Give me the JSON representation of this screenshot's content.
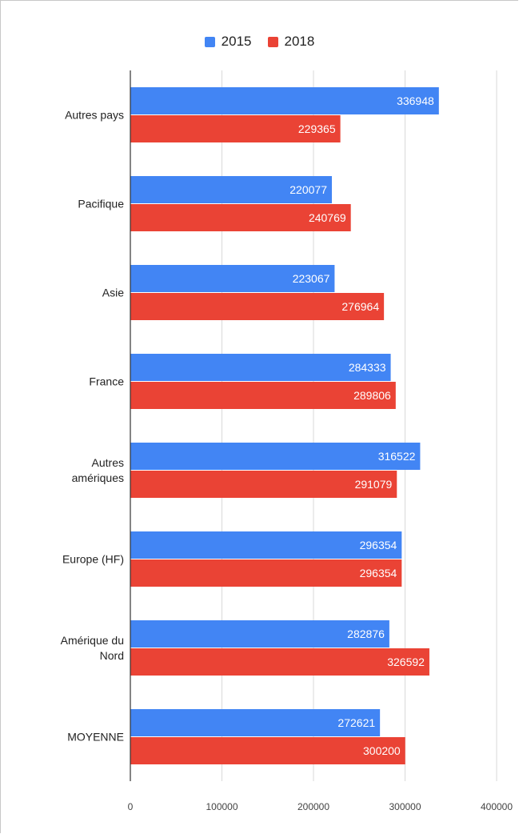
{
  "chart_data": {
    "type": "bar",
    "orientation": "horizontal",
    "categories": [
      "Autres pays",
      "Pacifique",
      "Asie",
      "France",
      "Autres amériques",
      "Europe (HF)",
      "Amérique du Nord",
      "MOYENNE"
    ],
    "category_lines": [
      [
        "Autres pays"
      ],
      [
        "Pacifique"
      ],
      [
        "Asie"
      ],
      [
        "France"
      ],
      [
        "Autres",
        "amériques"
      ],
      [
        "Europe (HF)"
      ],
      [
        "Amérique du",
        "Nord"
      ],
      [
        "MOYENNE"
      ]
    ],
    "series": [
      {
        "name": "2015",
        "color": "#4285f4",
        "values": [
          336948,
          220077,
          223067,
          284333,
          316522,
          296354,
          282876,
          272621
        ]
      },
      {
        "name": "2018",
        "color": "#ea4335",
        "values": [
          229365,
          240769,
          276964,
          289806,
          291079,
          296354,
          326592,
          300200
        ]
      }
    ],
    "xlim": [
      0,
      400000
    ],
    "xticks": [
      0,
      100000,
      200000,
      300000,
      400000
    ],
    "grid": true,
    "legend_position": "top"
  }
}
